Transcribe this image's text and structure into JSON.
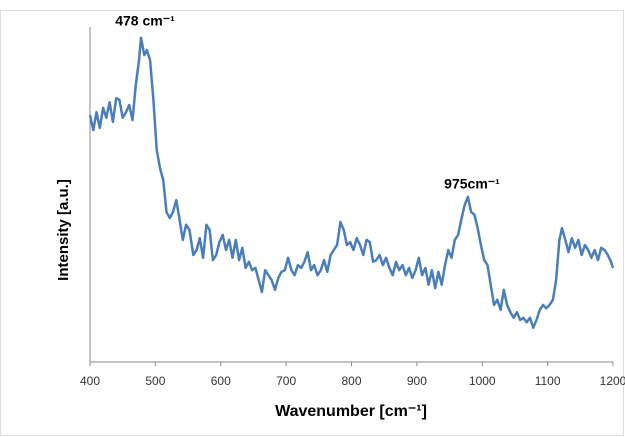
{
  "chart_data": {
    "type": "line",
    "xlabel": "Wavenumber [cm⁻¹]",
    "ylabel": "Intensity [a.u.]",
    "annotations": [
      "478 cm⁻¹",
      "975cm⁻¹"
    ],
    "xlim": [
      400,
      1200
    ],
    "xticks": [
      400,
      500,
      600,
      700,
      800,
      900,
      1000,
      1100,
      1200
    ],
    "ylim": [
      0,
      6
    ],
    "x": [
      400,
      405,
      410,
      415,
      420,
      425,
      430,
      435,
      440,
      445,
      450,
      455,
      460,
      465,
      470,
      475,
      478,
      483,
      487,
      492,
      497,
      502,
      507,
      512,
      517,
      522,
      527,
      532,
      537,
      542,
      547,
      552,
      558,
      563,
      568,
      573,
      578,
      583,
      588,
      593,
      598,
      603,
      608,
      613,
      618,
      623,
      628,
      633,
      638,
      643,
      648,
      653,
      658,
      663,
      668,
      673,
      678,
      683,
      688,
      693,
      698,
      703,
      708,
      713,
      718,
      723,
      728,
      733,
      738,
      743,
      748,
      753,
      758,
      763,
      768,
      773,
      778,
      783,
      788,
      793,
      798,
      803,
      808,
      813,
      818,
      823,
      828,
      833,
      838,
      843,
      848,
      853,
      858,
      863,
      868,
      873,
      878,
      883,
      888,
      893,
      898,
      903,
      908,
      913,
      918,
      923,
      928,
      933,
      938,
      943,
      948,
      953,
      958,
      963,
      968,
      973,
      978,
      983,
      988,
      993,
      998,
      1003,
      1008,
      1013,
      1018,
      1023,
      1028,
      1033,
      1038,
      1043,
      1048,
      1053,
      1058,
      1063,
      1068,
      1073,
      1078,
      1083,
      1088,
      1093,
      1098,
      1103,
      1108,
      1113,
      1118,
      1122,
      1127,
      1132,
      1137,
      1142,
      1147,
      1152,
      1157,
      1162,
      1167,
      1172,
      1177,
      1182,
      1187,
      1192,
      1197,
      1200
    ],
    "series": [
      {
        "color": "#4a7ebb",
        "values": [
          4.41,
          4.14,
          4.46,
          4.18,
          4.54,
          4.36,
          4.64,
          4.29,
          4.71,
          4.68,
          4.36,
          4.46,
          4.59,
          4.32,
          4.95,
          5.39,
          5.79,
          5.48,
          5.57,
          5.39,
          4.68,
          3.79,
          3.46,
          3.25,
          2.68,
          2.57,
          2.68,
          2.89,
          2.54,
          2.18,
          2.45,
          2.36,
          1.91,
          2.0,
          2.21,
          1.86,
          2.45,
          2.36,
          1.82,
          1.91,
          2.14,
          2.27,
          2.0,
          2.18,
          1.86,
          2.18,
          1.82,
          2.04,
          1.68,
          1.79,
          1.64,
          1.68,
          1.46,
          1.25,
          1.64,
          1.55,
          1.46,
          1.29,
          1.5,
          1.61,
          1.64,
          1.86,
          1.64,
          1.55,
          1.73,
          1.68,
          1.79,
          1.96,
          1.64,
          1.73,
          1.55,
          1.64,
          1.82,
          1.61,
          1.91,
          2.0,
          2.09,
          2.5,
          2.36,
          2.09,
          2.14,
          2.0,
          2.21,
          2.09,
          1.91,
          2.18,
          2.14,
          1.79,
          1.82,
          1.91,
          1.73,
          1.86,
          1.68,
          1.55,
          1.79,
          1.64,
          1.73,
          1.55,
          1.68,
          1.5,
          1.64,
          1.86,
          1.55,
          1.68,
          1.38,
          1.64,
          1.32,
          1.61,
          1.38,
          1.73,
          2.0,
          1.86,
          2.18,
          2.27,
          2.54,
          2.8,
          2.95,
          2.68,
          2.63,
          2.39,
          2.09,
          1.82,
          1.73,
          1.38,
          1.02,
          1.11,
          0.93,
          1.29,
          1.02,
          0.89,
          0.79,
          0.89,
          0.75,
          0.79,
          0.71,
          0.79,
          0.61,
          0.75,
          0.93,
          1.02,
          0.96,
          1.02,
          1.11,
          1.46,
          2.18,
          2.39,
          2.18,
          1.96,
          2.21,
          2.04,
          2.18,
          1.91,
          2.09,
          2.0,
          1.86,
          2.0,
          1.82,
          2.04,
          2.0,
          1.91,
          1.79,
          1.68
        ]
      }
    ]
  }
}
